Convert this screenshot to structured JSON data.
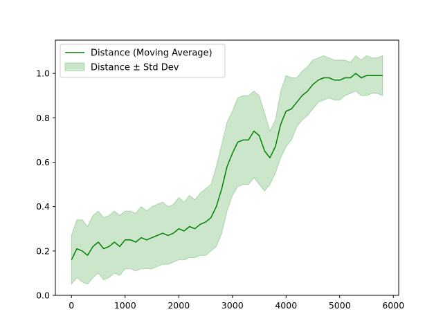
{
  "chart_data": {
    "type": "line",
    "title": "",
    "xlabel": "",
    "ylabel": "",
    "xlim": [
      -300,
      6100
    ],
    "ylim": [
      0.0,
      1.15
    ],
    "xticks": [
      0,
      1000,
      2000,
      3000,
      4000,
      5000,
      6000
    ],
    "yticks": [
      0.0,
      0.2,
      0.4,
      0.6,
      0.8,
      1.0
    ],
    "xtick_labels": [
      "0",
      "1000",
      "2000",
      "3000",
      "4000",
      "5000",
      "6000"
    ],
    "ytick_labels": [
      "0.0",
      "0.2",
      "0.4",
      "0.6",
      "0.8",
      "1.0"
    ],
    "grid": false,
    "legend_position": "top-left",
    "series": [
      {
        "name": "Distance (Moving Average)",
        "kind": "line",
        "color": "#008000",
        "x": [
          0,
          100,
          200,
          300,
          400,
          500,
          600,
          700,
          800,
          900,
          1000,
          1100,
          1200,
          1300,
          1400,
          1500,
          1600,
          1700,
          1800,
          1900,
          2000,
          2100,
          2200,
          2300,
          2400,
          2500,
          2600,
          2700,
          2800,
          2900,
          3000,
          3100,
          3200,
          3300,
          3400,
          3500,
          3600,
          3700,
          3800,
          3900,
          4000,
          4100,
          4200,
          4300,
          4400,
          4500,
          4600,
          4700,
          4800,
          4900,
          5000,
          5100,
          5200,
          5300,
          5400,
          5500,
          5600,
          5700,
          5800
        ],
        "y": [
          0.16,
          0.21,
          0.2,
          0.18,
          0.22,
          0.24,
          0.21,
          0.22,
          0.24,
          0.22,
          0.25,
          0.25,
          0.24,
          0.26,
          0.25,
          0.26,
          0.27,
          0.28,
          0.27,
          0.28,
          0.3,
          0.29,
          0.31,
          0.3,
          0.32,
          0.33,
          0.35,
          0.4,
          0.48,
          0.58,
          0.64,
          0.69,
          0.7,
          0.7,
          0.74,
          0.72,
          0.65,
          0.62,
          0.67,
          0.77,
          0.83,
          0.84,
          0.87,
          0.9,
          0.92,
          0.95,
          0.97,
          0.98,
          0.98,
          0.97,
          0.97,
          0.98,
          0.98,
          1.0,
          0.98,
          0.99,
          0.99,
          0.99,
          0.99
        ]
      },
      {
        "name": "Distance ± Std Dev",
        "kind": "band",
        "color": "#008000",
        "fill_opacity": 0.2,
        "x": [
          0,
          100,
          200,
          300,
          400,
          500,
          600,
          700,
          800,
          900,
          1000,
          1100,
          1200,
          1300,
          1400,
          1500,
          1600,
          1700,
          1800,
          1900,
          2000,
          2100,
          2200,
          2300,
          2400,
          2500,
          2600,
          2700,
          2800,
          2900,
          3000,
          3100,
          3200,
          3300,
          3400,
          3500,
          3600,
          3700,
          3800,
          3900,
          4000,
          4100,
          4200,
          4300,
          4400,
          4500,
          4600,
          4700,
          4800,
          4900,
          5000,
          5100,
          5200,
          5300,
          5400,
          5500,
          5600,
          5700,
          5800
        ],
        "lower": [
          0.05,
          0.08,
          0.06,
          0.05,
          0.08,
          0.1,
          0.07,
          0.08,
          0.1,
          0.09,
          0.12,
          0.12,
          0.11,
          0.12,
          0.12,
          0.12,
          0.13,
          0.14,
          0.14,
          0.15,
          0.16,
          0.16,
          0.17,
          0.17,
          0.18,
          0.18,
          0.2,
          0.22,
          0.28,
          0.38,
          0.45,
          0.49,
          0.5,
          0.5,
          0.53,
          0.5,
          0.47,
          0.5,
          0.55,
          0.62,
          0.67,
          0.7,
          0.76,
          0.79,
          0.81,
          0.84,
          0.87,
          0.88,
          0.89,
          0.88,
          0.88,
          0.9,
          0.91,
          0.92,
          0.9,
          0.9,
          0.91,
          0.91,
          0.9
        ],
        "upper": [
          0.27,
          0.34,
          0.34,
          0.31,
          0.36,
          0.38,
          0.35,
          0.36,
          0.38,
          0.36,
          0.38,
          0.38,
          0.37,
          0.4,
          0.38,
          0.4,
          0.41,
          0.42,
          0.4,
          0.41,
          0.44,
          0.42,
          0.45,
          0.43,
          0.46,
          0.48,
          0.5,
          0.58,
          0.68,
          0.78,
          0.83,
          0.89,
          0.9,
          0.9,
          0.92,
          0.9,
          0.82,
          0.74,
          0.79,
          0.92,
          0.99,
          0.98,
          0.98,
          1.01,
          1.03,
          1.06,
          1.07,
          1.08,
          1.07,
          1.06,
          1.06,
          1.06,
          1.05,
          1.08,
          1.06,
          1.08,
          1.07,
          1.07,
          1.08
        ]
      }
    ]
  }
}
